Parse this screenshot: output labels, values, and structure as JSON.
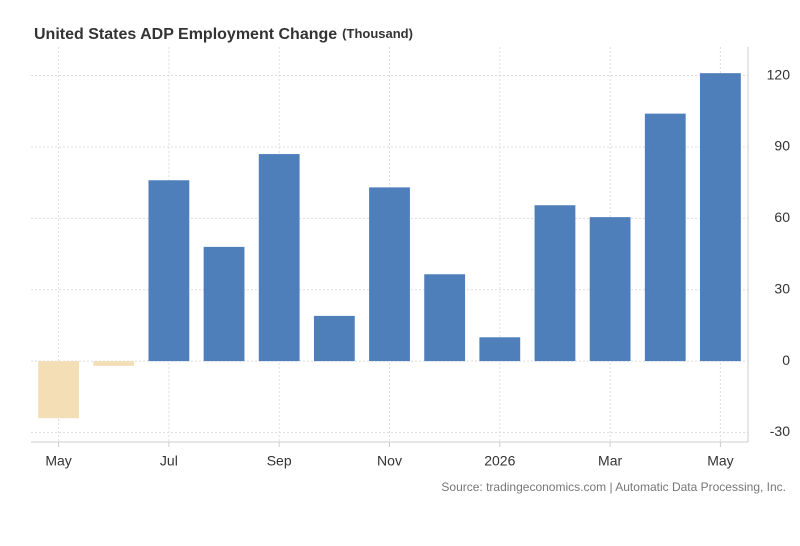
{
  "chart_data": {
    "type": "bar",
    "title": "United States ADP Employment Change",
    "subtitle": "(Thousand)",
    "source": "Source: tradingeconomics.com | Automatic Data Processing, Inc.",
    "categories": [
      "May",
      null,
      "Jul",
      null,
      "Sep",
      null,
      "Nov",
      null,
      "2026",
      null,
      "Mar",
      null,
      "May"
    ],
    "values": [
      -24,
      -2,
      76,
      48,
      87,
      19,
      73,
      36.5,
      10,
      65.5,
      60.5,
      104,
      121
    ],
    "color": "#4e7fbb",
    "negative_color": "#f3deb6",
    "ylim": [
      -34,
      132
    ],
    "yticks": [
      -30,
      0,
      30,
      60,
      90,
      120
    ],
    "grid": true
  }
}
